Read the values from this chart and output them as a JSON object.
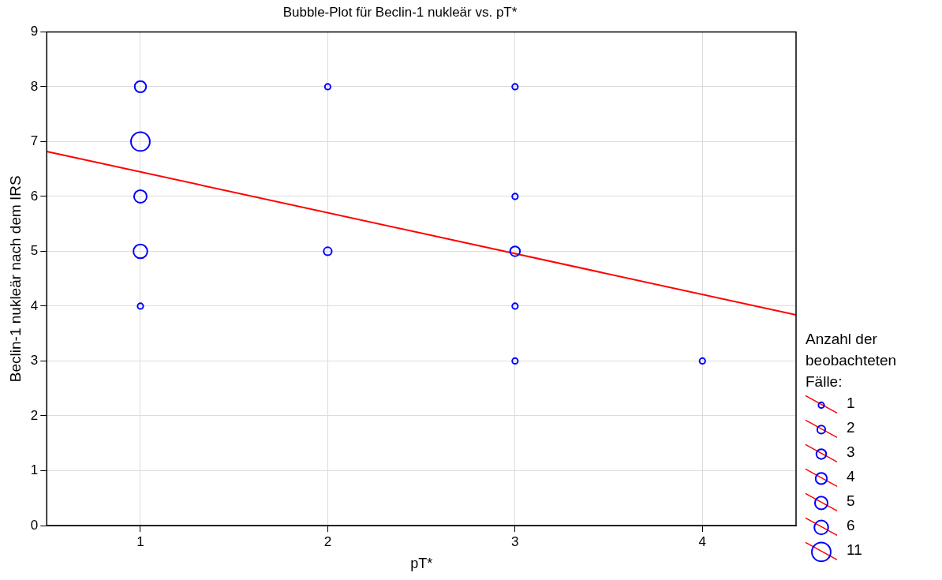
{
  "chart_data": {
    "type": "bubble",
    "title": "Bubble-Plot für Beclin-1 nukleär vs. pT*",
    "xlabel": "pT*",
    "ylabel": "Beclin-1 nukleär nach dem IRS",
    "legend_title": "Anzahl der beobachteten Fälle:",
    "grid": true,
    "xlim": [
      0.5,
      4.5
    ],
    "xticks": [
      1,
      2,
      3,
      4
    ],
    "ylim": [
      0,
      9
    ],
    "yticks": [
      0,
      1,
      2,
      3,
      4,
      5,
      6,
      7,
      8,
      9
    ],
    "size_legend": [
      1,
      2,
      3,
      4,
      5,
      6,
      11
    ],
    "series": [
      {
        "color": "#0000ff",
        "x": [
          1,
          1,
          1,
          1,
          1,
          2,
          2,
          3,
          3,
          3,
          3,
          3,
          4
        ],
        "values": [
          8,
          7,
          6,
          5,
          4,
          8,
          5,
          8,
          6,
          5,
          4,
          3,
          3
        ],
        "sizes": [
          4,
          11,
          5,
          6,
          1,
          1,
          2,
          1,
          1,
          3,
          1,
          1,
          1
        ]
      },
      {
        "type": "line",
        "color": "#ff0000",
        "x": [
          0.5,
          4.5
        ],
        "values": [
          6.82,
          3.84
        ]
      }
    ]
  }
}
